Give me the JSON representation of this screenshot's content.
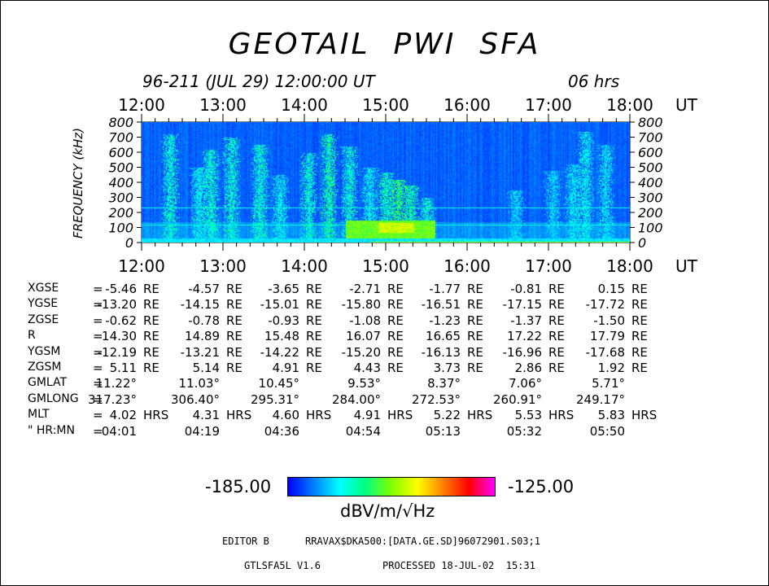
{
  "title": "GEOTAIL  PWI  SFA",
  "subtitle_date": "96-211 (JUL 29) 12:00:00 UT",
  "subtitle_duration": "06 hrs",
  "chart_data": {
    "type": "heatmap",
    "x_tick_labels": [
      "12:00",
      "13:00",
      "14:00",
      "15:00",
      "16:00",
      "17:00",
      "18:00"
    ],
    "x_unit": "UT",
    "x_range_hours": [
      0,
      6
    ],
    "ylabel": "FREQUENCY (kHz)",
    "y_tick_labels": [
      "800",
      "700",
      "600",
      "500",
      "400",
      "300",
      "200",
      "100",
      "0"
    ],
    "ylim": [
      0,
      800
    ],
    "colorbar": {
      "min_label": "-185.00",
      "max_label": "-125.00",
      "unit": "dBV/m/√Hz",
      "colors": [
        "#0000ff",
        "#0080ff",
        "#00ffff",
        "#00ff80",
        "#80ff00",
        "#ffff00",
        "#ff8000",
        "#ff0000",
        "#ff00ff"
      ]
    },
    "emission_bursts": [
      {
        "t_hours": 0.35,
        "fmax_khz": 720,
        "level": 0.35
      },
      {
        "t_hours": 0.7,
        "fmax_khz": 500,
        "level": 0.3
      },
      {
        "t_hours": 0.85,
        "fmax_khz": 620,
        "level": 0.35
      },
      {
        "t_hours": 1.1,
        "fmax_khz": 700,
        "level": 0.35
      },
      {
        "t_hours": 1.45,
        "fmax_khz": 650,
        "level": 0.35
      },
      {
        "t_hours": 1.7,
        "fmax_khz": 450,
        "level": 0.3
      },
      {
        "t_hours": 2.05,
        "fmax_khz": 600,
        "level": 0.35
      },
      {
        "t_hours": 2.3,
        "fmax_khz": 720,
        "level": 0.4
      },
      {
        "t_hours": 2.55,
        "fmax_khz": 640,
        "level": 0.35
      },
      {
        "t_hours": 2.8,
        "fmax_khz": 500,
        "level": 0.3
      },
      {
        "t_hours": 3.0,
        "fmax_khz": 470,
        "level": 0.38
      },
      {
        "t_hours": 3.15,
        "fmax_khz": 420,
        "level": 0.45
      },
      {
        "t_hours": 3.3,
        "fmax_khz": 380,
        "level": 0.4
      },
      {
        "t_hours": 3.5,
        "fmax_khz": 300,
        "level": 0.35
      },
      {
        "t_hours": 4.6,
        "fmax_khz": 350,
        "level": 0.25
      },
      {
        "t_hours": 5.05,
        "fmax_khz": 480,
        "level": 0.25
      },
      {
        "t_hours": 5.3,
        "fmax_khz": 520,
        "level": 0.28
      },
      {
        "t_hours": 5.45,
        "fmax_khz": 740,
        "level": 0.3
      },
      {
        "t_hours": 5.7,
        "fmax_khz": 650,
        "level": 0.28
      }
    ]
  },
  "orbit_table": {
    "rows": [
      {
        "param": "XGSE",
        "eq": "=",
        "values": [
          "-5.46",
          "-4.57",
          "-3.65",
          "-2.71",
          "-1.77",
          "-0.81",
          "0.15"
        ],
        "unit": "RE"
      },
      {
        "param": "YGSE",
        "eq": "=",
        "values": [
          "-13.20",
          "-14.15",
          "-15.01",
          "-15.80",
          "-16.51",
          "-17.15",
          "-17.72"
        ],
        "unit": "RE"
      },
      {
        "param": "ZGSE",
        "eq": "=",
        "values": [
          "-0.62",
          "-0.78",
          "-0.93",
          "-1.08",
          "-1.23",
          "-1.37",
          "-1.50"
        ],
        "unit": "RE"
      },
      {
        "param": "R",
        "eq": "=",
        "values": [
          "14.30",
          "14.89",
          "15.48",
          "16.07",
          "16.65",
          "17.22",
          "17.79"
        ],
        "unit": "RE"
      },
      {
        "param": "YGSM",
        "eq": "=",
        "values": [
          "-12.19",
          "-13.21",
          "-14.22",
          "-15.20",
          "-16.13",
          "-16.96",
          "-17.68"
        ],
        "unit": "RE"
      },
      {
        "param": "ZGSM",
        "eq": "=",
        "values": [
          "5.11",
          "5.14",
          "4.91",
          "4.43",
          "3.73",
          "2.86",
          "1.92"
        ],
        "unit": "RE"
      },
      {
        "param": "GMLAT",
        "eq": "=",
        "values": [
          "11.22°",
          "11.03°",
          "10.45°",
          "9.53°",
          "8.37°",
          "7.06°",
          "5.71°"
        ],
        "unit": ""
      },
      {
        "param": "GMLONG",
        "eq": "=",
        "values": [
          "317.23°",
          "306.40°",
          "295.31°",
          "284.00°",
          "272.53°",
          "260.91°",
          "249.17°"
        ],
        "unit": ""
      },
      {
        "param": "MLT",
        "eq": "=",
        "values": [
          "4.02",
          "4.31",
          "4.60",
          "4.91",
          "5.22",
          "5.53",
          "5.83"
        ],
        "unit": "HRS"
      },
      {
        "param": "\" HR:MN",
        "eq": "=",
        "values": [
          "04:01",
          "04:19",
          "04:36",
          "04:54",
          "05:13",
          "05:32",
          "05:50"
        ],
        "unit": ""
      }
    ]
  },
  "footer": {
    "editor": "EDITOR B",
    "path": "RRAVAX$DKA500:[DATA.GE.SD]96072901.S03;1",
    "version": "GTLSFA5L V1.6",
    "processed": "PROCESSED 18-JUL-02  15:31"
  }
}
